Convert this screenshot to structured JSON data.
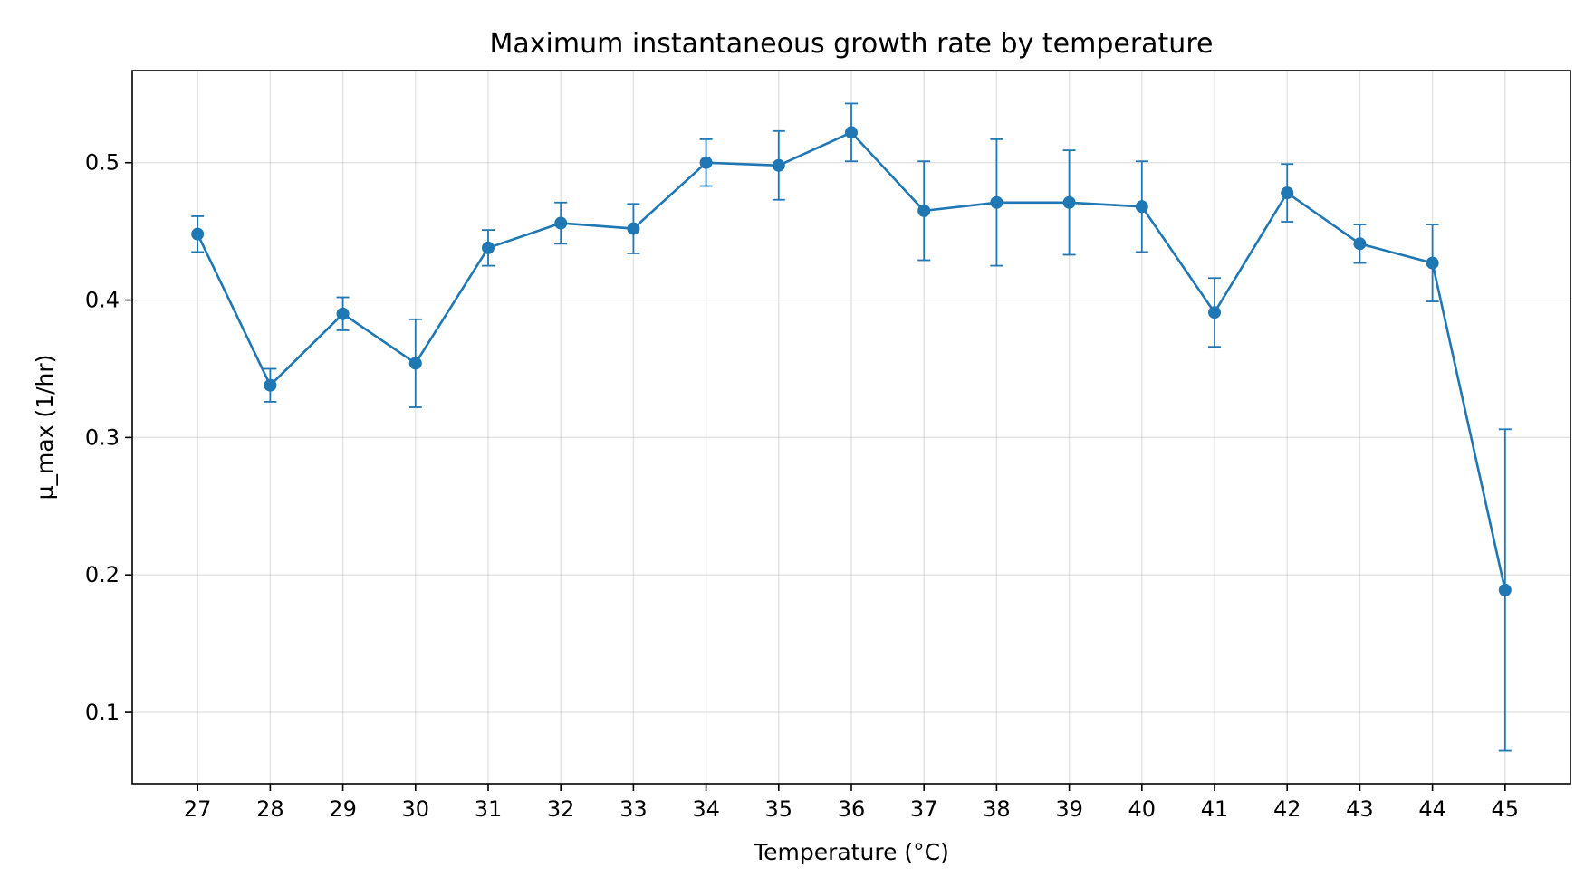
{
  "chart_data": {
    "type": "line",
    "title": "Maximum instantaneous growth rate by temperature",
    "xlabel": "Temperature (°C)",
    "ylabel": "μ_max (1/hr)",
    "x": [
      27,
      28,
      29,
      30,
      31,
      32,
      33,
      34,
      35,
      36,
      37,
      38,
      39,
      40,
      41,
      42,
      43,
      44,
      45
    ],
    "series": [
      {
        "values": [
          0.448,
          0.338,
          0.39,
          0.354,
          0.438,
          0.456,
          0.452,
          0.5,
          0.498,
          0.522,
          0.465,
          0.471,
          0.471,
          0.468,
          0.391,
          0.478,
          0.441,
          0.427,
          0.189
        ],
        "error": [
          0.013,
          0.012,
          0.012,
          0.032,
          0.013,
          0.015,
          0.018,
          0.017,
          0.025,
          0.021,
          0.036,
          0.046,
          0.038,
          0.033,
          0.025,
          0.021,
          0.014,
          0.028,
          0.117
        ],
        "color": "#1f77b4"
      }
    ],
    "xlim": [
      26.1,
      45.9
    ],
    "ylim": [
      0.048,
      0.567
    ],
    "yticks": [
      0.1,
      0.2,
      0.3,
      0.4,
      0.5
    ],
    "ytick_labels": [
      "0.1",
      "0.2",
      "0.3",
      "0.4",
      "0.5"
    ],
    "xtick_labels": [
      "27",
      "28",
      "29",
      "30",
      "31",
      "32",
      "33",
      "34",
      "35",
      "36",
      "37",
      "38",
      "39",
      "40",
      "41",
      "42",
      "43",
      "44",
      "45"
    ],
    "grid": true
  }
}
